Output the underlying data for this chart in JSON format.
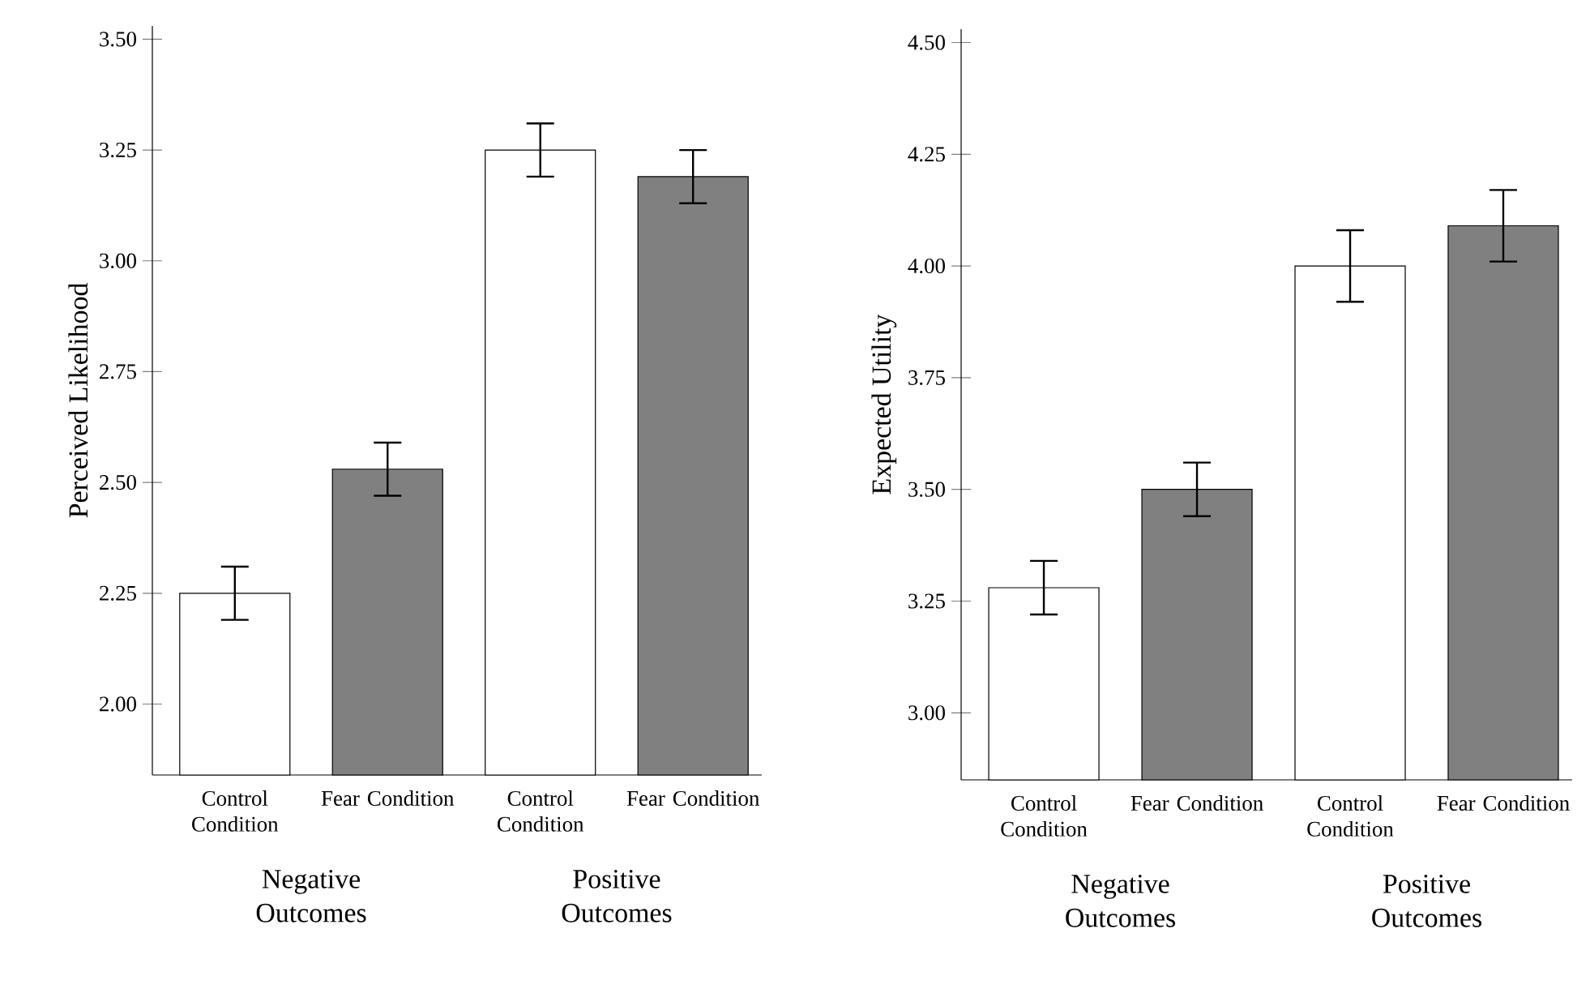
{
  "chart_data": [
    {
      "type": "bar",
      "ylabel": "Perceived Likelihood",
      "categories": [
        "Control Condition",
        "Fear Condition",
        "Control Condition",
        "Fear Condition"
      ],
      "values": [
        2.25,
        2.53,
        3.25,
        3.19
      ],
      "errors": [
        0.06,
        0.06,
        0.06,
        0.06
      ],
      "colors": [
        "#ffffff",
        "#808080",
        "#ffffff",
        "#808080"
      ],
      "ylim": [
        1.84,
        3.53
      ],
      "yticks": [
        {
          "value": 2.0,
          "label": "2.00"
        },
        {
          "value": 2.25,
          "label": "2.25"
        },
        {
          "value": 2.5,
          "label": "2.50"
        },
        {
          "value": 2.75,
          "label": "2.75"
        },
        {
          "value": 3.0,
          "label": "3.00"
        },
        {
          "value": 3.25,
          "label": "3.25"
        },
        {
          "value": 3.5,
          "label": "3.50"
        }
      ],
      "annotations": [
        "Negative Outcomes",
        "Positive Outcomes"
      ]
    },
    {
      "type": "bar",
      "ylabel": "Expected Utility",
      "categories": [
        "Control Condition",
        "Fear Condition",
        "Control Condition",
        "Fear Condition"
      ],
      "values": [
        3.28,
        3.5,
        4.0,
        4.09
      ],
      "errors": [
        0.06,
        0.06,
        0.08,
        0.08
      ],
      "colors": [
        "#ffffff",
        "#808080",
        "#ffffff",
        "#808080"
      ],
      "ylim": [
        2.85,
        4.53
      ],
      "yticks": [
        {
          "value": 3.0,
          "label": "3.00"
        },
        {
          "value": 3.25,
          "label": "3.25"
        },
        {
          "value": 3.5,
          "label": "3.50"
        },
        {
          "value": 3.75,
          "label": "3.75"
        },
        {
          "value": 4.0,
          "label": "4.00"
        },
        {
          "value": 4.25,
          "label": "4.25"
        },
        {
          "value": 4.5,
          "label": "4.50"
        }
      ],
      "annotations": [
        "Negative Outcomes",
        "Positive Outcomes"
      ]
    }
  ]
}
